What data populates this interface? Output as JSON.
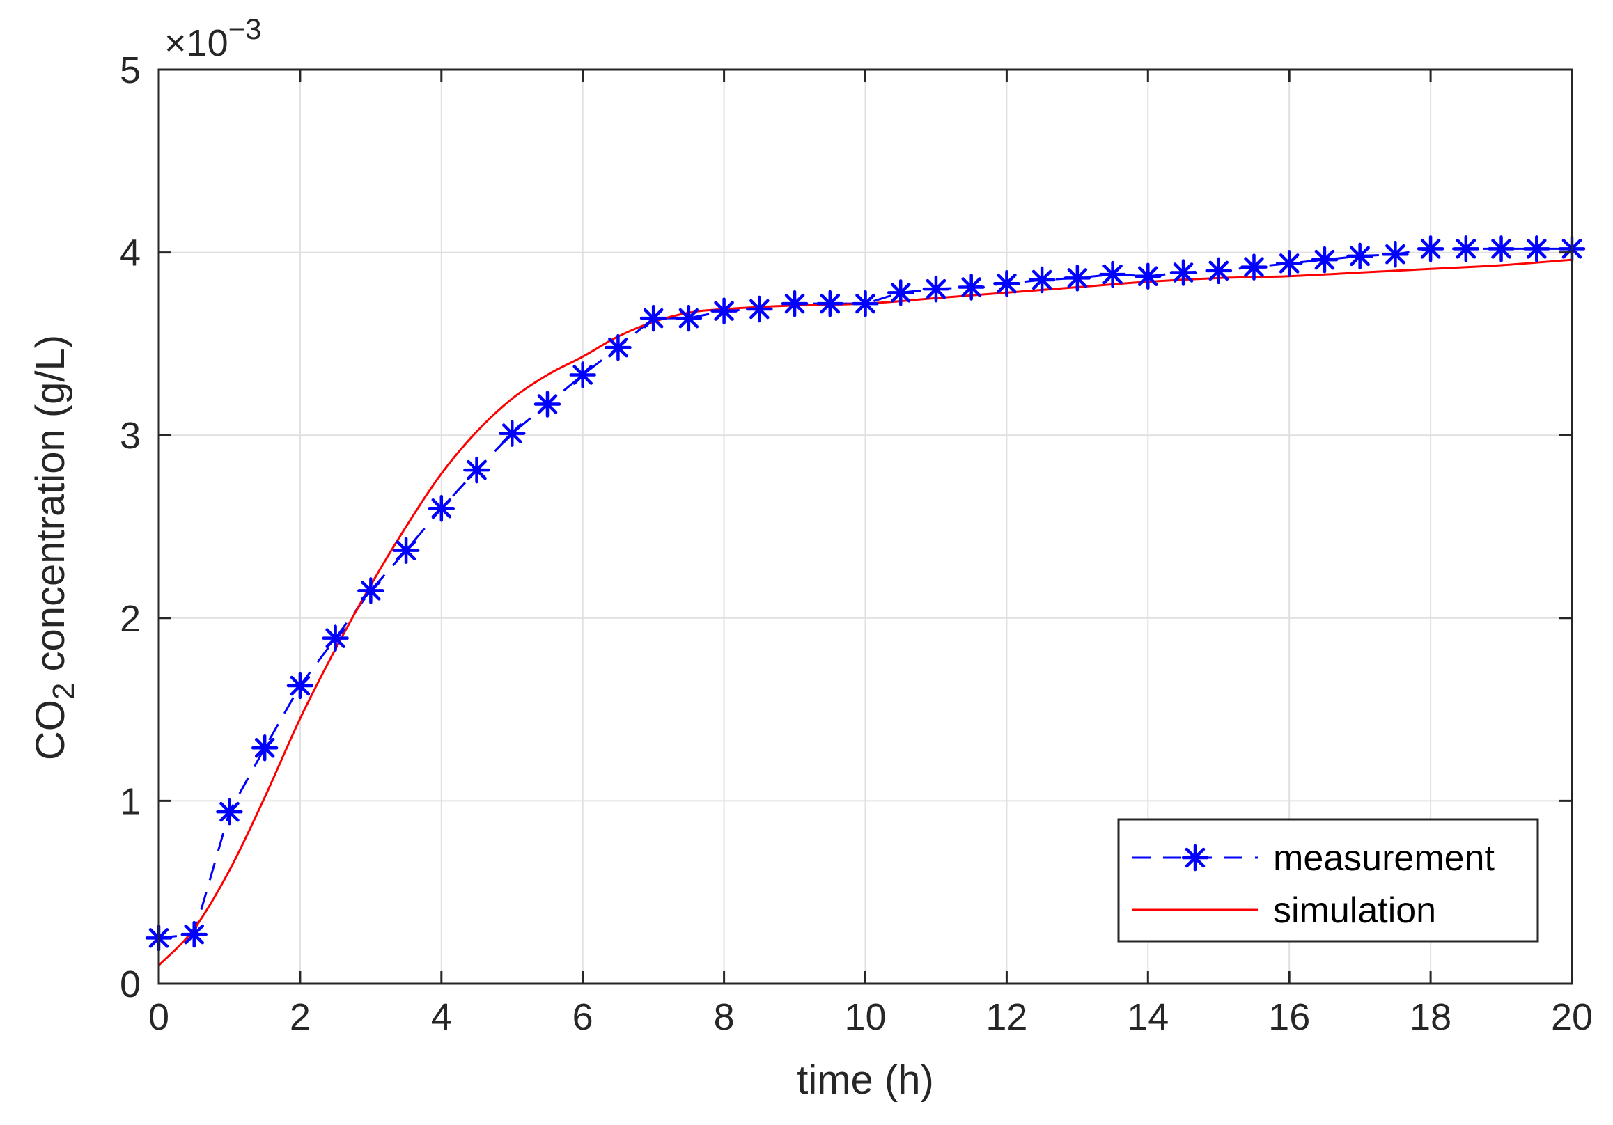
{
  "chart_data": {
    "type": "line",
    "title": "",
    "xlabel": "time (h)",
    "ylabel_main": "CO",
    "ylabel_sub": "2",
    "ylabel_rest": " concentration (g/L)",
    "exponent_prefix": "×10",
    "exponent_power": "−3",
    "xlim": [
      0,
      20
    ],
    "ylim": [
      0,
      5
    ],
    "x_ticks": [
      0,
      2,
      4,
      6,
      8,
      10,
      12,
      14,
      16,
      18,
      20
    ],
    "y_ticks": [
      0,
      1,
      2,
      3,
      4,
      5
    ],
    "grid": true,
    "legend_position": "bottom-right",
    "colors": {
      "measurement": "#0000ff",
      "simulation": "#ff0000",
      "axis": "#262626",
      "grid": "#e0e0e0"
    },
    "series": [
      {
        "name": "measurement",
        "style": "dashed line with asterisk markers",
        "x": [
          0,
          0.5,
          1,
          1.5,
          2,
          2.5,
          3,
          3.5,
          4,
          4.5,
          5,
          5.5,
          6,
          6.5,
          7,
          7.5,
          8,
          8.5,
          9,
          9.5,
          10,
          10.5,
          11,
          11.5,
          12,
          12.5,
          13,
          13.5,
          14,
          14.5,
          15,
          15.5,
          16,
          16.5,
          17,
          17.5,
          18,
          18.5,
          19,
          19.5,
          20
        ],
        "values": [
          0.25,
          0.27,
          0.94,
          1.29,
          1.63,
          1.89,
          2.15,
          2.37,
          2.6,
          2.81,
          3.01,
          3.17,
          3.33,
          3.48,
          3.64,
          3.64,
          3.68,
          3.69,
          3.72,
          3.72,
          3.72,
          3.78,
          3.8,
          3.81,
          3.83,
          3.85,
          3.86,
          3.88,
          3.87,
          3.89,
          3.9,
          3.92,
          3.94,
          3.96,
          3.98,
          3.99,
          4.02,
          4.02,
          4.02,
          4.02,
          4.02
        ]
      },
      {
        "name": "simulation",
        "style": "solid line",
        "x": [
          0,
          0.5,
          1,
          1.5,
          2,
          2.5,
          3,
          3.5,
          4,
          4.5,
          5,
          5.5,
          6,
          6.5,
          7,
          7.5,
          8,
          9,
          10,
          11,
          12,
          13,
          14,
          15,
          16,
          17,
          18,
          19,
          20
        ],
        "values": [
          0.1,
          0.3,
          0.62,
          1.02,
          1.45,
          1.83,
          2.18,
          2.5,
          2.79,
          3.02,
          3.2,
          3.33,
          3.43,
          3.54,
          3.62,
          3.67,
          3.69,
          3.71,
          3.72,
          3.75,
          3.78,
          3.81,
          3.84,
          3.86,
          3.87,
          3.89,
          3.91,
          3.93,
          3.96
        ]
      }
    ]
  }
}
